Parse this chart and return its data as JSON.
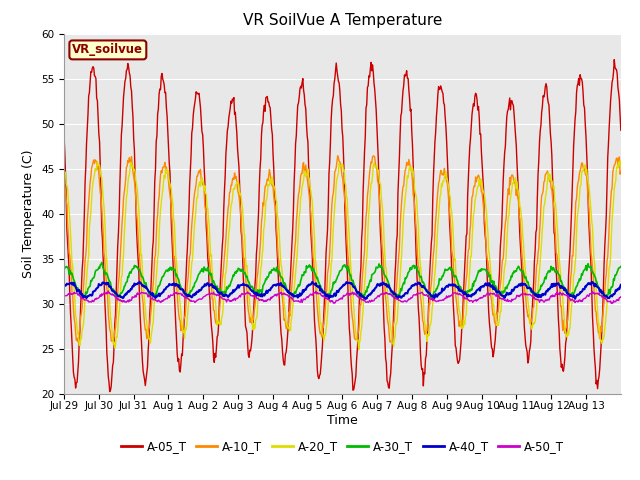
{
  "title": "VR SoilVue A Temperature",
  "xlabel": "Time",
  "ylabel": "Soil Temperature (C)",
  "ylim": [
    20,
    60
  ],
  "yticks": [
    20,
    25,
    30,
    35,
    40,
    45,
    50,
    55,
    60
  ],
  "bg_color": "#e8e8e8",
  "legend_label": "VR_soilvue",
  "series_colors": {
    "A-05_T": "#cc0000",
    "A-10_T": "#ff8800",
    "A-20_T": "#dddd00",
    "A-30_T": "#00bb00",
    "A-40_T": "#0000cc",
    "A-50_T": "#cc00cc"
  },
  "series_order": [
    "A-05_T",
    "A-10_T",
    "A-20_T",
    "A-30_T",
    "A-40_T",
    "A-50_T"
  ],
  "xtick_labels": [
    "Jul 29",
    "Jul 30",
    "Jul 31",
    "Aug 1",
    "Aug 2",
    "Aug 3",
    "Aug 4",
    "Aug 5",
    "Aug 6",
    "Aug 7",
    "Aug 8",
    "Aug 9",
    "Aug 10",
    "Aug 11",
    "Aug 12",
    "Aug 13"
  ],
  "title_fontsize": 11,
  "axis_label_fontsize": 9,
  "tick_fontsize": 7.5,
  "legend_fontsize": 8.5
}
